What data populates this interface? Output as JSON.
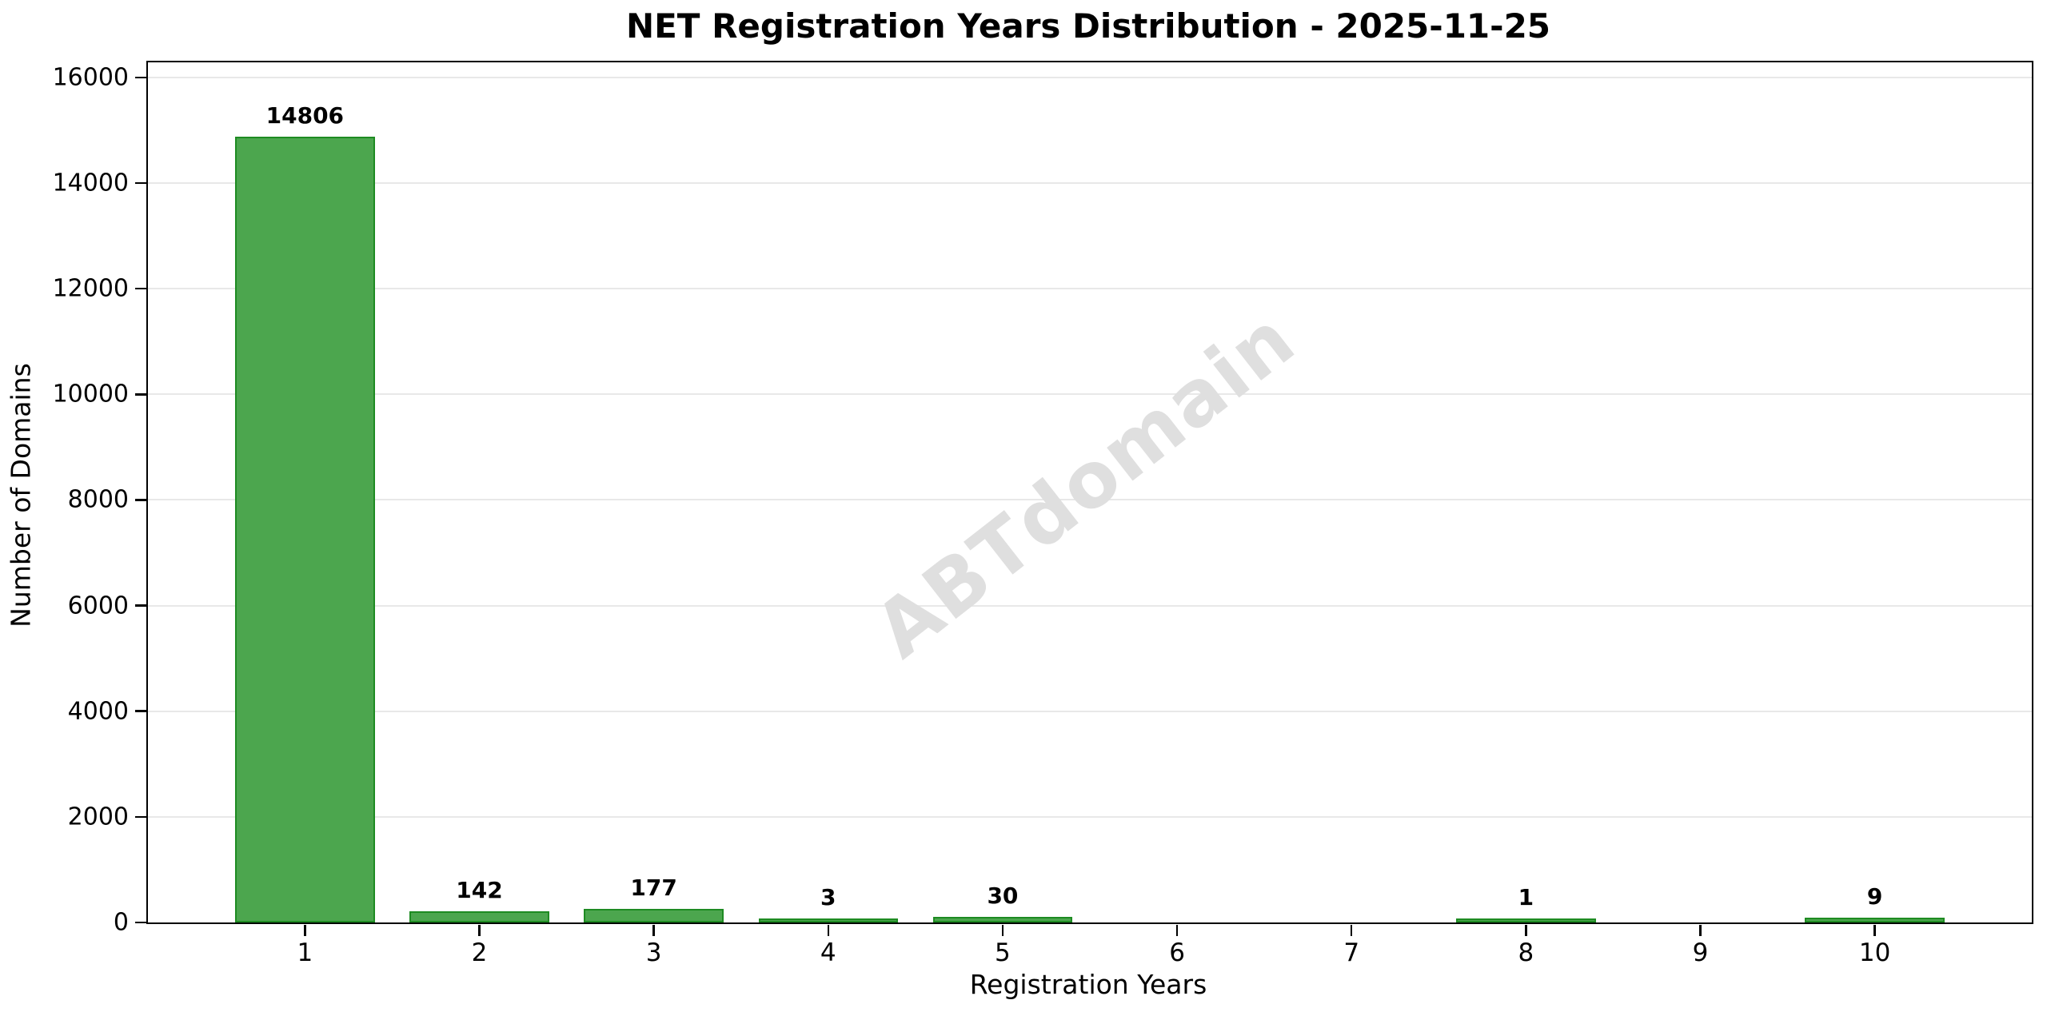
{
  "chart_data": {
    "type": "bar",
    "title": "NET Registration Years Distribution - 2025-11-25",
    "xlabel": "Registration Years",
    "ylabel": "Number of Domains",
    "watermark": "ABTdomain",
    "categories": [
      "1",
      "2",
      "3",
      "4",
      "5",
      "6",
      "7",
      "8",
      "9",
      "10"
    ],
    "values": [
      14806,
      142,
      177,
      3,
      30,
      0,
      0,
      1,
      0,
      9
    ],
    "bar_value_labels": [
      "14806",
      "142",
      "177",
      "3",
      "30",
      "",
      "",
      "1",
      "",
      "9"
    ],
    "yticks": [
      0,
      2000,
      4000,
      6000,
      8000,
      10000,
      12000,
      14000,
      16000
    ],
    "ytick_labels": [
      "0",
      "2000",
      "4000",
      "6000",
      "8000",
      "10000",
      "12000",
      "14000",
      "16000"
    ],
    "ylim": [
      0,
      16287
    ],
    "xlim": [
      0.1,
      10.9
    ],
    "bar_width_units": 0.8,
    "grid": "horizontal-major",
    "legend": "none",
    "colors": {
      "bar_fill": "#4CA64E",
      "bar_edge": "#1E8B22",
      "grid": "#E8E8E8",
      "spine": "#000000",
      "text": "#000000",
      "watermark": "#DFDFDF",
      "background": "#FFFFFF"
    }
  }
}
